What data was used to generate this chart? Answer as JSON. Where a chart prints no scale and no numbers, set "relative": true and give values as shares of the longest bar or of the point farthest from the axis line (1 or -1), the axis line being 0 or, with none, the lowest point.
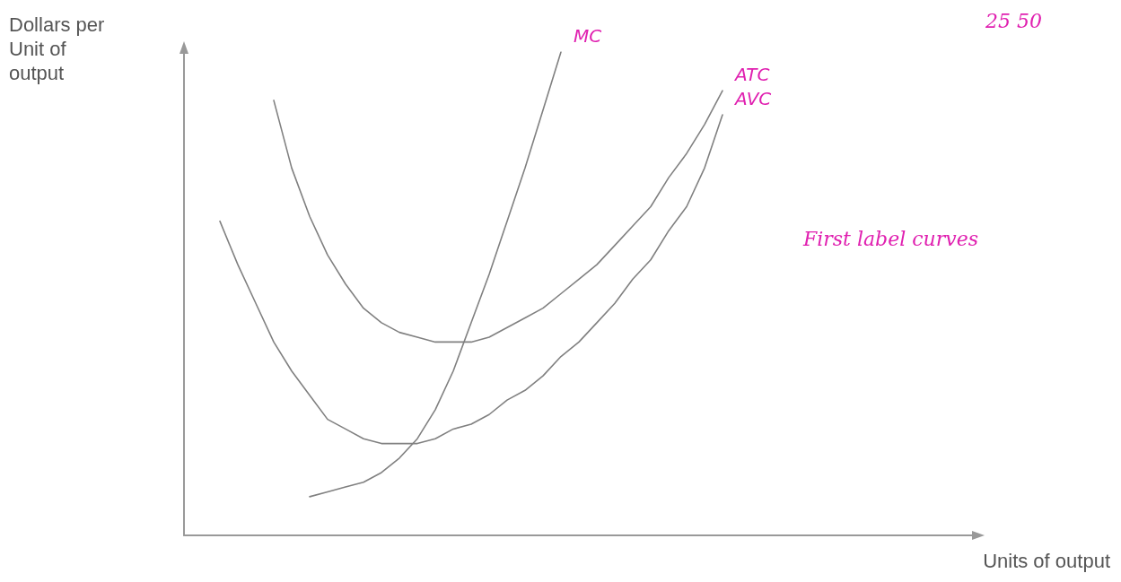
{
  "chart_data": {
    "type": "line",
    "relative": true,
    "xlabel": "Units of output",
    "ylabel": "Dollars per Unit of output",
    "marker": "none",
    "grid": false,
    "annotations": [
      "First label curves",
      "25 50"
    ],
    "categories": [
      null,
      null,
      null,
      null,
      null,
      null,
      null,
      null,
      null,
      null,
      null,
      null,
      null,
      null,
      null,
      null,
      null,
      null,
      null,
      null,
      null,
      null,
      null,
      null,
      null,
      null,
      null,
      null,
      null,
      null,
      null,
      null,
      null,
      null,
      null,
      null,
      null,
      null,
      null,
      null,
      null,
      null,
      null,
      null,
      null
    ],
    "series": [
      {
        "name": "MC",
        "color": "#808080",
        "values": [
          null,
          null,
          null,
          null,
          null,
          null,
          null,
          0.08,
          0.09,
          0.1,
          0.11,
          0.13,
          0.16,
          0.2,
          0.26,
          0.34,
          0.44,
          0.54,
          0.65,
          0.76,
          0.88,
          1,
          null,
          null,
          null,
          null,
          null,
          null,
          null,
          null,
          null,
          null,
          null,
          null,
          null,
          null,
          null,
          null,
          null,
          null,
          null,
          null,
          null,
          null,
          null
        ]
      },
      {
        "name": "ATC",
        "color": "#808080",
        "values": [
          null,
          null,
          null,
          null,
          null,
          0.9,
          0.76,
          0.66,
          0.58,
          0.52,
          0.47,
          0.44,
          0.42,
          0.41,
          0.4,
          0.4,
          0.4,
          0.41,
          0.43,
          0.45,
          0.47,
          0.5,
          0.53,
          0.56,
          0.6,
          0.64,
          0.68,
          0.74,
          0.79,
          0.85,
          0.92,
          null,
          null,
          null,
          null,
          null,
          null,
          null,
          null,
          null,
          null,
          null,
          null,
          null,
          null
        ]
      },
      {
        "name": "AVC",
        "color": "#808080",
        "values": [
          null,
          null,
          0.65,
          0.56,
          0.48,
          0.4,
          0.34,
          0.29,
          0.24,
          0.22,
          0.2,
          0.19,
          0.19,
          0.19,
          0.2,
          0.22,
          0.23,
          0.25,
          0.28,
          0.3,
          0.33,
          0.37,
          0.4,
          0.44,
          0.48,
          0.53,
          0.57,
          0.63,
          0.68,
          0.76,
          0.87,
          null,
          null,
          null,
          null,
          null,
          null,
          null,
          null,
          null,
          null,
          null,
          null,
          null,
          null
        ]
      }
    ]
  }
}
